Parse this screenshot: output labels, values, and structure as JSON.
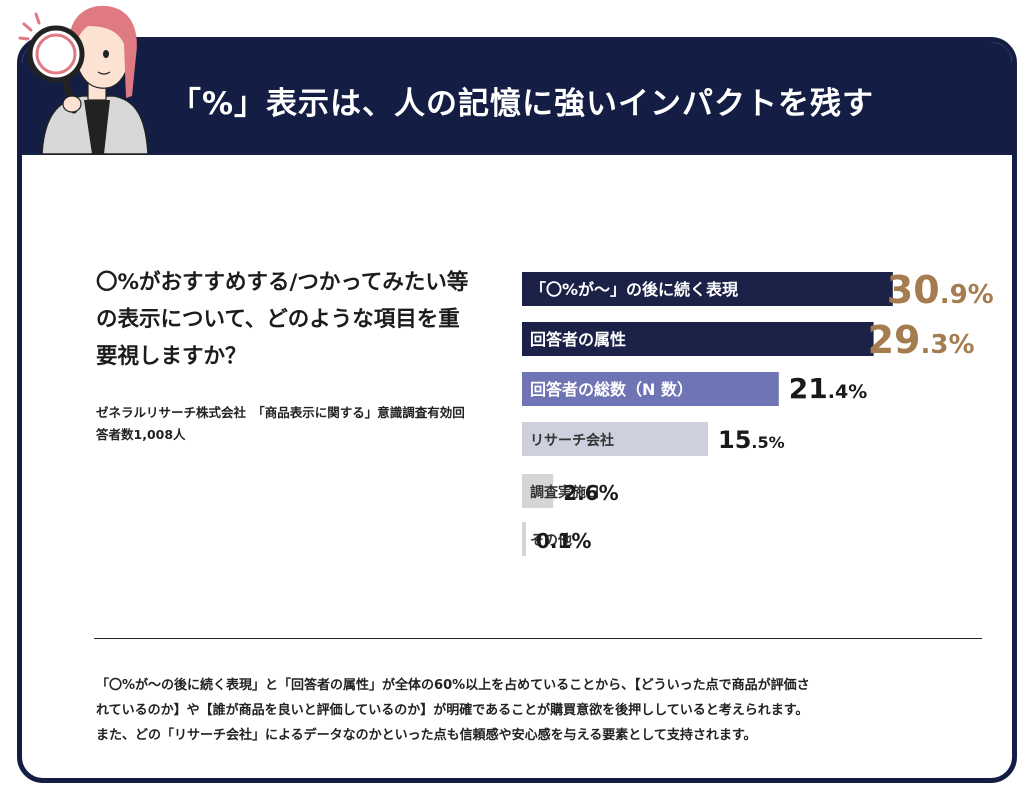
{
  "header": {
    "title": "「%」表示は、人の記憶に強いインパクトを残す"
  },
  "question": "〇%がおすすめする/つかってみたい等の表示について、どのような項目を重要視しますか？",
  "source": "ゼネラルリサーチ株式会社　「商品表示に関する」意識調査有効回答者数1,008人",
  "chart_data": {
    "type": "bar",
    "orientation": "horizontal",
    "categories": [
      "「〇%が〜」の後に続く表現",
      "回答者の属性",
      "回答者の総数（N 数）",
      "リサーチ会社",
      "調査実施日",
      "その他"
    ],
    "values": [
      30.9,
      29.3,
      21.4,
      15.5,
      2.6,
      0.1
    ],
    "value_labels": [
      {
        "int": "30",
        "dec": ".9%"
      },
      {
        "int": "29",
        "dec": ".3%"
      },
      {
        "int": "21",
        "dec": ".4%"
      },
      {
        "int": "15",
        "dec": ".5%"
      },
      {
        "int": "2",
        "dec": ".6%"
      },
      {
        "int": "0",
        "dec": ".1%"
      }
    ],
    "bar_colors": [
      "#1b2147",
      "#1b2147",
      "#6f74b5",
      "#cfd0de",
      "#d5d5d5",
      "#d5d5d5"
    ],
    "label_colors": [
      "#ffffff",
      "#ffffff",
      "#ffffff",
      "#333333",
      "#333333",
      "#333333"
    ],
    "value_colors": [
      "#a57c4f",
      "#a57c4f",
      "#1a1a1a",
      "#1a1a1a",
      "#1a1a1a",
      "#1a1a1a"
    ],
    "xlim": [
      0,
      31
    ]
  },
  "summary": [
    "「〇%が〜の後に続く表現」と「回答者の属性」が全体の60%以上を占めていることから、【どういった点で商品が評価さ",
    "れているのか】や【誰が商品を良いと評価しているのか】が明確であることが購買意欲を後押ししていると考えられます。",
    "また、どの「リサーチ会社」によるデータなのかといった点も信頼感や安心感を与える要素として支持されます。"
  ],
  "colors": {
    "navy": "#141d44",
    "accent_gold": "#a57c4f",
    "accent_purple": "#6f74b5",
    "mascot_hair": "#e07a82"
  },
  "icons": [
    "magnifier-icon",
    "sparkle-icon"
  ]
}
